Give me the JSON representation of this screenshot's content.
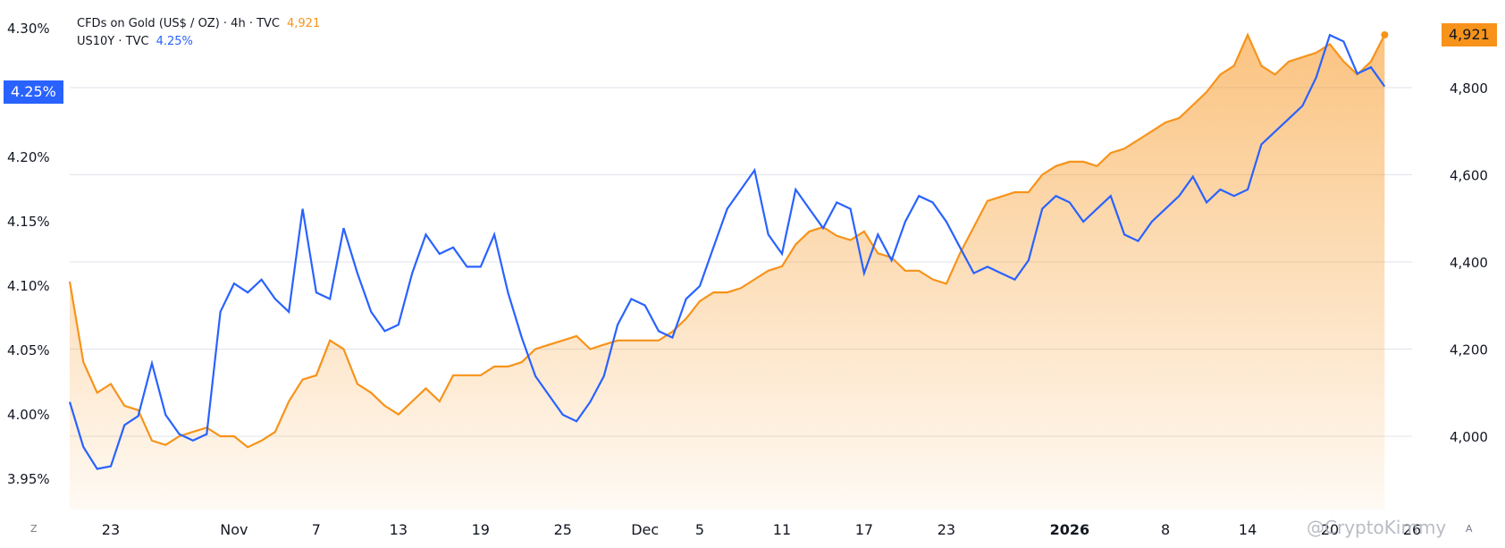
{
  "legend": {
    "gold_label": "CFDs on Gold (US$ / OZ) · 4h · TVC",
    "gold_value": "4,921",
    "us10y_label": "US10Y · TVC",
    "us10y_value": "4.25%"
  },
  "badges": {
    "left": "4.25%",
    "right": "4,921"
  },
  "corner": {
    "left": "Z",
    "right": "A"
  },
  "watermark": "@CryptoKimmy",
  "colors": {
    "gold": "#f7931a",
    "us10y": "#2962ff",
    "grid": "#e0e3eb"
  },
  "chart_data": {
    "type": "line",
    "left_axis": {
      "ticks": [
        "4.30%",
        "4.25%",
        "4.20%",
        "4.15%",
        "4.10%",
        "4.05%",
        "4.00%",
        "3.95%"
      ],
      "values": [
        4.3,
        4.25,
        4.2,
        4.15,
        4.1,
        4.05,
        4.0,
        3.95
      ]
    },
    "right_axis": {
      "ticks": [
        "4,800",
        "4,600",
        "4,400",
        "4,200",
        "4,000"
      ],
      "values": [
        4800,
        4600,
        4400,
        4200,
        4000
      ]
    },
    "x_ticks": [
      {
        "label": "23",
        "t": 3
      },
      {
        "label": "Nov",
        "t": 12
      },
      {
        "label": "7",
        "t": 18
      },
      {
        "label": "13",
        "t": 24
      },
      {
        "label": "19",
        "t": 30
      },
      {
        "label": "25",
        "t": 36
      },
      {
        "label": "Dec",
        "t": 42
      },
      {
        "label": "5",
        "t": 46
      },
      {
        "label": "11",
        "t": 52
      },
      {
        "label": "17",
        "t": 58
      },
      {
        "label": "23",
        "t": 64
      },
      {
        "label": "2026",
        "t": 73,
        "bold": true
      },
      {
        "label": "8",
        "t": 80
      },
      {
        "label": "14",
        "t": 86
      },
      {
        "label": "20",
        "t": 92
      },
      {
        "label": "26",
        "t": 98
      }
    ],
    "series": [
      {
        "name": "US10Y · TVC",
        "axis": "left",
        "color": "#2962ff",
        "t": [
          0,
          1,
          2,
          3,
          4,
          5,
          6,
          7,
          8,
          9,
          10,
          11,
          12,
          13,
          14,
          15,
          16,
          17,
          18,
          19,
          20,
          21,
          22,
          23,
          24,
          25,
          26,
          27,
          28,
          29,
          30,
          31,
          32,
          33,
          34,
          35,
          36,
          37,
          38,
          39,
          40,
          41,
          42,
          43,
          44,
          45,
          46,
          47,
          48,
          49,
          50,
          51,
          52,
          53,
          54,
          55,
          56,
          57,
          58,
          59,
          60,
          61,
          62,
          63,
          64,
          65,
          66,
          67,
          68,
          69,
          70,
          71,
          72,
          73,
          74,
          75,
          76,
          77,
          78,
          79,
          80,
          81,
          82,
          83,
          84,
          85,
          86,
          87,
          88,
          89,
          90,
          91,
          92,
          93,
          94,
          95,
          96
        ],
        "values": [
          4.01,
          3.975,
          3.958,
          3.96,
          3.992,
          3.999,
          4.04,
          4.0,
          3.985,
          3.98,
          3.985,
          4.08,
          4.102,
          4.095,
          4.105,
          4.09,
          4.08,
          4.16,
          4.095,
          4.09,
          4.145,
          4.11,
          4.08,
          4.065,
          4.07,
          4.11,
          4.14,
          4.125,
          4.13,
          4.115,
          4.115,
          4.14,
          4.095,
          4.06,
          4.03,
          4.015,
          4.0,
          3.995,
          4.01,
          4.03,
          4.07,
          4.09,
          4.085,
          4.065,
          4.06,
          4.09,
          4.1,
          4.13,
          4.16,
          4.175,
          4.19,
          4.14,
          4.125,
          4.175,
          4.16,
          4.145,
          4.165,
          4.16,
          4.11,
          4.14,
          4.12,
          4.15,
          4.17,
          4.165,
          4.15,
          4.13,
          4.11,
          4.115,
          4.11,
          4.105,
          4.12,
          4.16,
          4.17,
          4.165,
          4.15,
          4.16,
          4.17,
          4.14,
          4.135,
          4.15,
          4.16,
          4.17,
          4.185,
          4.165,
          4.175,
          4.17,
          4.175,
          4.21,
          4.22,
          4.23,
          4.24,
          4.262,
          4.295,
          4.29,
          4.265,
          4.27,
          4.255
        ]
      },
      {
        "name": "CFDs on Gold (US$ / OZ) · 4h · TVC",
        "axis": "right",
        "color": "#f7931a",
        "t": [
          0,
          1,
          2,
          3,
          4,
          5,
          6,
          7,
          8,
          9,
          10,
          11,
          12,
          13,
          14,
          15,
          16,
          17,
          18,
          19,
          20,
          21,
          22,
          23,
          24,
          25,
          26,
          27,
          28,
          29,
          30,
          31,
          32,
          33,
          34,
          35,
          36,
          37,
          38,
          39,
          40,
          41,
          42,
          43,
          44,
          45,
          46,
          47,
          48,
          49,
          50,
          51,
          52,
          53,
          54,
          55,
          56,
          57,
          58,
          59,
          60,
          61,
          62,
          63,
          64,
          65,
          66,
          67,
          68,
          69,
          70,
          71,
          72,
          73,
          74,
          75,
          76,
          77,
          78,
          79,
          80,
          81,
          82,
          83,
          84,
          85,
          86,
          87,
          88,
          89,
          90,
          91,
          92,
          93,
          94,
          95,
          96
        ],
        "values": [
          4355,
          4170,
          4100,
          4120,
          4070,
          4060,
          3990,
          3980,
          4000,
          4010,
          4020,
          4000,
          4000,
          3975,
          3990,
          4010,
          4080,
          4130,
          4140,
          4220,
          4200,
          4120,
          4100,
          4070,
          4050,
          4080,
          4110,
          4080,
          4140,
          4140,
          4140,
          4160,
          4160,
          4170,
          4200,
          4210,
          4220,
          4230,
          4200,
          4210,
          4220,
          4220,
          4220,
          4220,
          4240,
          4270,
          4310,
          4330,
          4330,
          4340,
          4360,
          4380,
          4390,
          4440,
          4470,
          4480,
          4460,
          4450,
          4470,
          4420,
          4410,
          4380,
          4380,
          4360,
          4350,
          4420,
          4480,
          4540,
          4550,
          4560,
          4560,
          4600,
          4620,
          4630,
          4630,
          4620,
          4650,
          4660,
          4680,
          4700,
          4720,
          4730,
          4760,
          4790,
          4830,
          4850,
          4921,
          4850,
          4830,
          4860,
          4870,
          4880,
          4900,
          4860,
          4830,
          4860,
          4921
        ]
      }
    ]
  }
}
